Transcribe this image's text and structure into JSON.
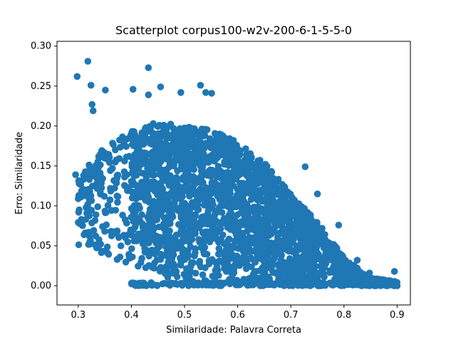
{
  "chart_data": {
    "type": "scatter",
    "title": "Scatterplot corpus100-w2v-200-6-1-5-5-0",
    "xlabel": "Similaridade: Palavra Correta",
    "ylabel": "Erro: Similaridade",
    "xlim": [
      0.26,
      0.925
    ],
    "ylim": [
      -0.024,
      0.306
    ],
    "xticks": [
      0.3,
      0.4,
      0.5,
      0.6,
      0.7,
      0.8,
      0.9
    ],
    "xtick_labels": [
      "0.3",
      "0.4",
      "0.5",
      "0.6",
      "0.7",
      "0.8",
      "0.9"
    ],
    "yticks": [
      0.0,
      0.05,
      0.1,
      0.15,
      0.2,
      0.25,
      0.3
    ],
    "ytick_labels": [
      "0.00",
      "0.05",
      "0.10",
      "0.15",
      "0.20",
      "0.25",
      "0.30"
    ],
    "grid": false,
    "series": [
      {
        "name": "points",
        "color": "#1f77b4",
        "density_envelope": {
          "x": [
            0.3,
            0.35,
            0.4,
            0.45,
            0.5,
            0.55,
            0.6,
            0.65,
            0.7,
            0.75,
            0.8,
            0.85,
            0.9
          ],
          "y_upper": [
            0.135,
            0.175,
            0.195,
            0.205,
            0.2,
            0.195,
            0.18,
            0.155,
            0.115,
            0.08,
            0.035,
            0.01,
            0.005
          ]
        },
        "points": [
          {
            "x": 0.298,
            "y": 0.262
          },
          {
            "x": 0.318,
            "y": 0.281
          },
          {
            "x": 0.324,
            "y": 0.251
          },
          {
            "x": 0.326,
            "y": 0.227
          },
          {
            "x": 0.328,
            "y": 0.219
          },
          {
            "x": 0.351,
            "y": 0.245
          },
          {
            "x": 0.403,
            "y": 0.246
          },
          {
            "x": 0.432,
            "y": 0.273
          },
          {
            "x": 0.432,
            "y": 0.239
          },
          {
            "x": 0.455,
            "y": 0.249
          },
          {
            "x": 0.493,
            "y": 0.242
          },
          {
            "x": 0.53,
            "y": 0.251
          },
          {
            "x": 0.54,
            "y": 0.242
          },
          {
            "x": 0.551,
            "y": 0.241
          },
          {
            "x": 0.295,
            "y": 0.139
          },
          {
            "x": 0.3,
            "y": 0.109
          },
          {
            "x": 0.311,
            "y": 0.064
          },
          {
            "x": 0.314,
            "y": 0.083
          },
          {
            "x": 0.727,
            "y": 0.149
          },
          {
            "x": 0.75,
            "y": 0.115
          },
          {
            "x": 0.79,
            "y": 0.076
          },
          {
            "x": 0.825,
            "y": 0.032
          },
          {
            "x": 0.848,
            "y": 0.016
          },
          {
            "x": 0.895,
            "y": 0.018
          },
          {
            "x": 0.9,
            "y": 0.0
          },
          {
            "x": 0.88,
            "y": 0.0
          },
          {
            "x": 0.86,
            "y": 0.0
          }
        ]
      }
    ]
  }
}
